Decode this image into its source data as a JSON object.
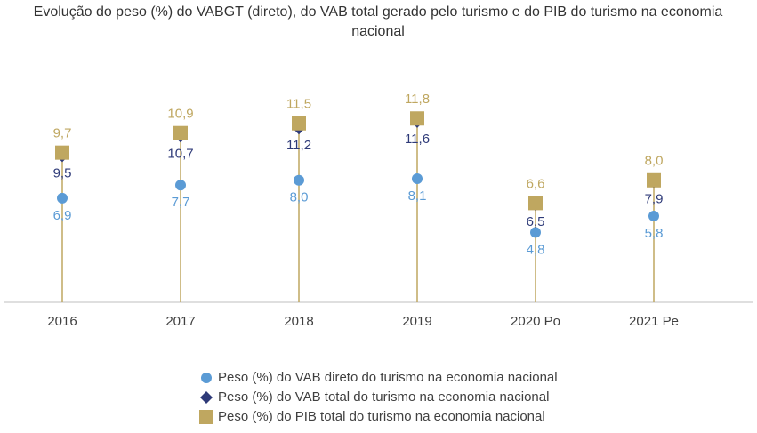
{
  "chart_data": {
    "type": "dot",
    "title": [
      "Evolução do peso (%) do VABGT (direto), do VAB total gerado pelo turismo e do PIB do turismo na economia",
      "nacional"
    ],
    "categories": [
      "2016",
      "2017",
      "2018",
      "2019",
      "2020 Po",
      "2021 Pe"
    ],
    "ylim": [
      0.5,
      14
    ],
    "series": [
      {
        "name": "Peso (%) do VAB direto do turismo na economia nacional",
        "color": "#5b9bd5",
        "marker": "circle",
        "values": [
          6.9,
          7.7,
          8.0,
          8.1,
          4.8,
          5.8
        ],
        "value_labels": [
          "6,9",
          "7,7",
          "8,0",
          "8,1",
          "4,8",
          "5,8"
        ]
      },
      {
        "name": "Peso (%) do VAB total do turismo na economia nacional",
        "color": "#2e3a78",
        "marker": "diamond",
        "values": [
          9.5,
          10.7,
          11.2,
          11.6,
          6.5,
          7.9
        ],
        "value_labels": [
          "9,5",
          "10,7",
          "11,2",
          "11,6",
          "6,5",
          "7,9"
        ]
      },
      {
        "name": "Peso (%) do PIB total do turismo na economia nacional",
        "color": "#bfa760",
        "marker": "square",
        "values": [
          9.7,
          10.9,
          11.5,
          11.8,
          6.6,
          8.0
        ],
        "value_labels": [
          "9,7",
          "10,9",
          "11,5",
          "11,8",
          "6,6",
          "8,0"
        ]
      }
    ]
  }
}
